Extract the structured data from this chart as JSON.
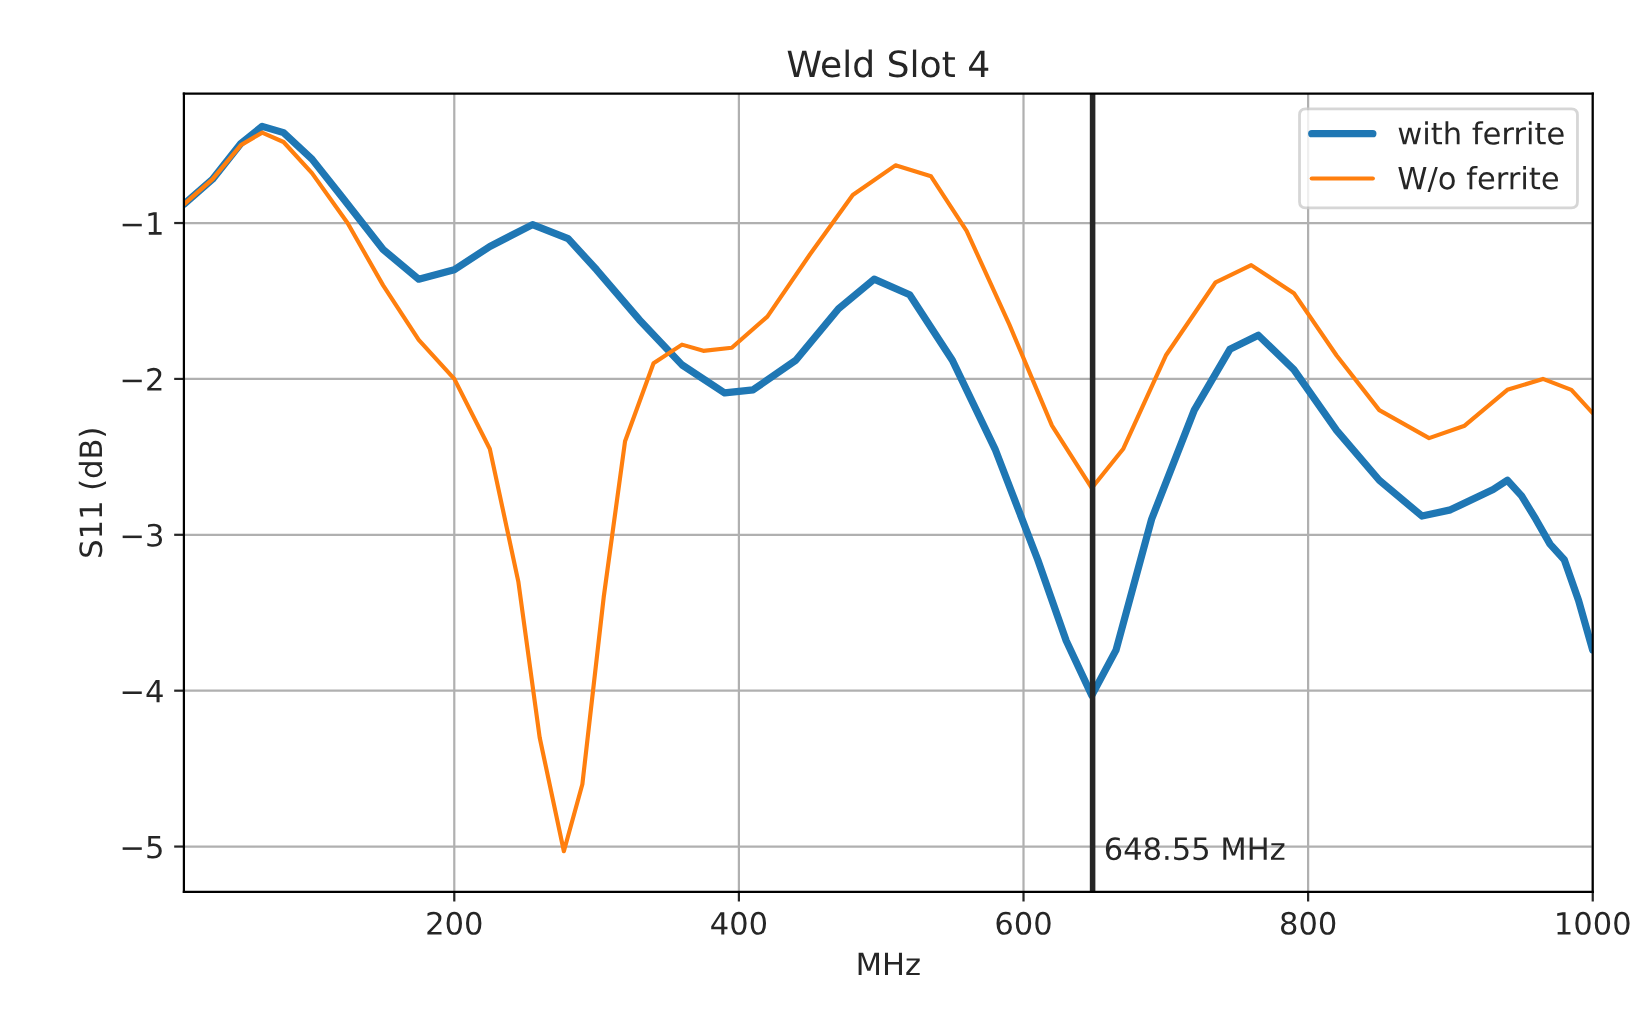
{
  "chart_data": {
    "type": "line",
    "title": "Weld Slot 4",
    "xlabel": "MHz",
    "ylabel": "S11 (dB)",
    "xlim": [
      10,
      1000
    ],
    "ylim": [
      -5.29,
      -0.17
    ],
    "xticks": [
      200,
      400,
      600,
      800,
      1000
    ],
    "yticks": [
      -5,
      -4,
      -3,
      -2,
      -1
    ],
    "grid": true,
    "legend": "top right",
    "ref_lines": [
      {
        "axis": "x",
        "value": 648.55,
        "label": "648.55 MHz",
        "color": "#262626"
      }
    ],
    "series": [
      {
        "name": "with ferrite",
        "color": "#1f77b4",
        "x": [
          10,
          30,
          50,
          65,
          80,
          100,
          120,
          150,
          175,
          200,
          225,
          255,
          280,
          300,
          330,
          360,
          390,
          410,
          440,
          470,
          495,
          520,
          550,
          580,
          610,
          630,
          648,
          665,
          690,
          720,
          745,
          765,
          790,
          820,
          850,
          880,
          900,
          930,
          940,
          950,
          960,
          970,
          980,
          990,
          1000
        ],
        "values": [
          -0.88,
          -0.72,
          -0.49,
          -0.38,
          -0.42,
          -0.59,
          -0.82,
          -1.17,
          -1.36,
          -1.3,
          -1.15,
          -1.01,
          -1.1,
          -1.3,
          -1.62,
          -1.91,
          -2.09,
          -2.07,
          -1.88,
          -1.55,
          -1.36,
          -1.46,
          -1.88,
          -2.45,
          -3.16,
          -3.68,
          -4.03,
          -3.74,
          -2.9,
          -2.2,
          -1.81,
          -1.72,
          -1.94,
          -2.33,
          -2.65,
          -2.88,
          -2.84,
          -2.71,
          -2.65,
          -2.75,
          -2.9,
          -3.06,
          -3.16,
          -3.42,
          -3.74
        ]
      },
      {
        "name": "W/o ferrite",
        "color": "#ff7f0e",
        "x": [
          10,
          30,
          50,
          65,
          80,
          100,
          125,
          150,
          175,
          200,
          225,
          245,
          260,
          277,
          290,
          305,
          320,
          340,
          360,
          375,
          395,
          420,
          450,
          480,
          510,
          535,
          560,
          590,
          620,
          648,
          670,
          700,
          735,
          760,
          790,
          820,
          850,
          885,
          910,
          940,
          965,
          985,
          1000
        ],
        "values": [
          -0.88,
          -0.72,
          -0.5,
          -0.42,
          -0.48,
          -0.68,
          -1.0,
          -1.4,
          -1.75,
          -2.0,
          -2.45,
          -3.3,
          -4.3,
          -5.03,
          -4.6,
          -3.4,
          -2.4,
          -1.9,
          -1.78,
          -1.82,
          -1.8,
          -1.6,
          -1.2,
          -0.82,
          -0.63,
          -0.7,
          -1.05,
          -1.65,
          -2.3,
          -2.7,
          -2.45,
          -1.85,
          -1.38,
          -1.27,
          -1.45,
          -1.85,
          -2.2,
          -2.38,
          -2.3,
          -2.07,
          -2.0,
          -2.07,
          -2.22
        ]
      }
    ]
  }
}
